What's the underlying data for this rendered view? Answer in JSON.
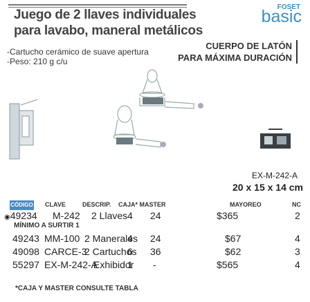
{
  "title": {
    "line1": "Juego de 2 llaves individuales",
    "line2": "para lavabo, maneral metálicos"
  },
  "brand": {
    "top": "FOSET",
    "main": "basic",
    "color": "#3a8fc8"
  },
  "features": [
    "-Cartucho cerámico de suave apertura",
    "-Peso: 210 g c/u"
  ],
  "callout": {
    "line1": "CUERPO DE LATÓN",
    "line2": "PARA MÁXIMA DURACIÓN"
  },
  "product": {
    "model": "EX-M-242-A",
    "dims": "20 x 15 x 14 cm"
  },
  "table": {
    "badge": "CÓDIGO",
    "headers": [
      "CLAVE",
      "DESCRIP.",
      "CAJA* MASTER",
      "",
      "MAYOREO",
      "NC"
    ],
    "rows": [
      {
        "code": "49234",
        "clave": "M-242",
        "desc": "2 Llaves",
        "caja": "4",
        "master": "24",
        "mayoreo": "$365",
        "nc": "2"
      },
      {
        "code": "49243",
        "clave": "MM-100",
        "desc": "2 Manerales",
        "caja": "4",
        "master": "24",
        "mayoreo": "$67",
        "nc": "4"
      },
      {
        "code": "49098",
        "clave": "CARCE-3",
        "desc": "2 Cartuchos",
        "caja": "6",
        "master": "36",
        "mayoreo": "$62",
        "nc": "3"
      },
      {
        "code": "55297",
        "clave": "EX-M-242-A",
        "desc": "Exhibidor",
        "caja": "1",
        "master": "-",
        "mayoreo": "$565",
        "nc": "4"
      }
    ],
    "min_note": "MÍNIMO A SURTIR 1",
    "footnote": "*CAJA Y MASTER CONSULTE TABLA"
  }
}
